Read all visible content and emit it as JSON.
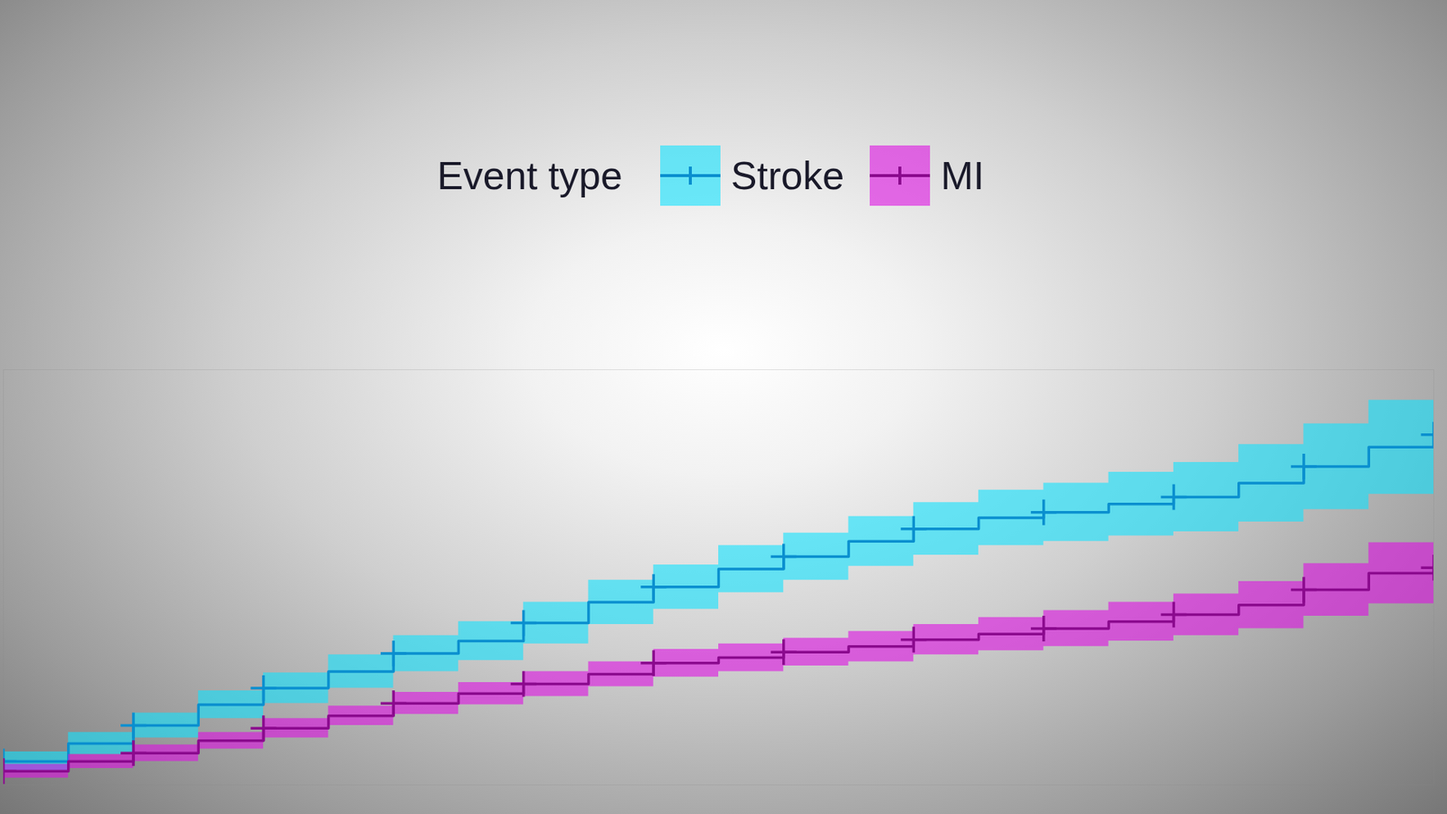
{
  "chart_data": {
    "type": "line",
    "legend_title": "Event type",
    "legend": "top",
    "tick_labels": false,
    "xlim": [
      0,
      11
    ],
    "ylim": [
      0,
      30
    ],
    "x": [
      0,
      0.5,
      1,
      1.5,
      2,
      2.5,
      3,
      3.5,
      4,
      4.5,
      5,
      5.5,
      6,
      6.5,
      7,
      7.5,
      8,
      8.5,
      9,
      9.5,
      10,
      10.5,
      11
    ],
    "series": [
      {
        "name": "Stroke",
        "color": "#0a8fcf",
        "marker": "plus",
        "line_style": "step",
        "values": [
          1.7,
          3.0,
          4.3,
          5.8,
          7.0,
          8.2,
          9.5,
          10.4,
          11.7,
          13.2,
          14.3,
          15.6,
          16.5,
          17.6,
          18.5,
          19.3,
          19.7,
          20.3,
          20.8,
          21.8,
          23.0,
          24.4,
          25.3
        ],
        "lower": [
          1.0,
          2.2,
          3.4,
          4.8,
          5.9,
          7.0,
          8.2,
          9.0,
          10.2,
          11.6,
          12.7,
          13.9,
          14.8,
          15.8,
          16.6,
          17.3,
          17.6,
          18.0,
          18.3,
          19.0,
          19.9,
          21.0,
          21.6
        ],
        "upper": [
          2.4,
          3.8,
          5.2,
          6.8,
          8.1,
          9.4,
          10.8,
          11.8,
          13.2,
          14.8,
          15.9,
          17.3,
          18.2,
          19.4,
          20.4,
          21.3,
          21.8,
          22.6,
          23.3,
          24.6,
          26.1,
          27.8,
          29.0
        ],
        "censored": [
          0,
          1,
          2,
          3,
          4,
          5,
          6,
          7,
          8,
          9,
          10,
          11
        ]
      },
      {
        "name": "MI",
        "color": "#8b0a8e",
        "marker": "plus",
        "line_style": "step",
        "values": [
          1.0,
          1.7,
          2.3,
          3.2,
          4.1,
          5.0,
          5.9,
          6.6,
          7.3,
          8.0,
          8.8,
          9.2,
          9.6,
          10.0,
          10.5,
          10.9,
          11.3,
          11.8,
          12.3,
          13.0,
          14.1,
          15.3,
          15.7
        ],
        "lower": [
          0.5,
          1.2,
          1.7,
          2.6,
          3.4,
          4.3,
          5.1,
          5.8,
          6.4,
          7.1,
          7.8,
          8.2,
          8.6,
          8.9,
          9.4,
          9.7,
          10.0,
          10.4,
          10.8,
          11.3,
          12.2,
          13.1,
          13.1
        ],
        "upper": [
          1.5,
          2.2,
          2.9,
          3.8,
          4.8,
          5.7,
          6.7,
          7.4,
          8.2,
          8.9,
          9.8,
          10.2,
          10.6,
          11.1,
          11.6,
          12.1,
          12.6,
          13.2,
          13.8,
          14.7,
          16.0,
          17.5,
          18.3
        ],
        "censored": [
          0,
          1,
          2,
          3,
          4,
          5,
          6,
          7,
          8,
          9,
          10,
          11
        ]
      }
    ]
  }
}
